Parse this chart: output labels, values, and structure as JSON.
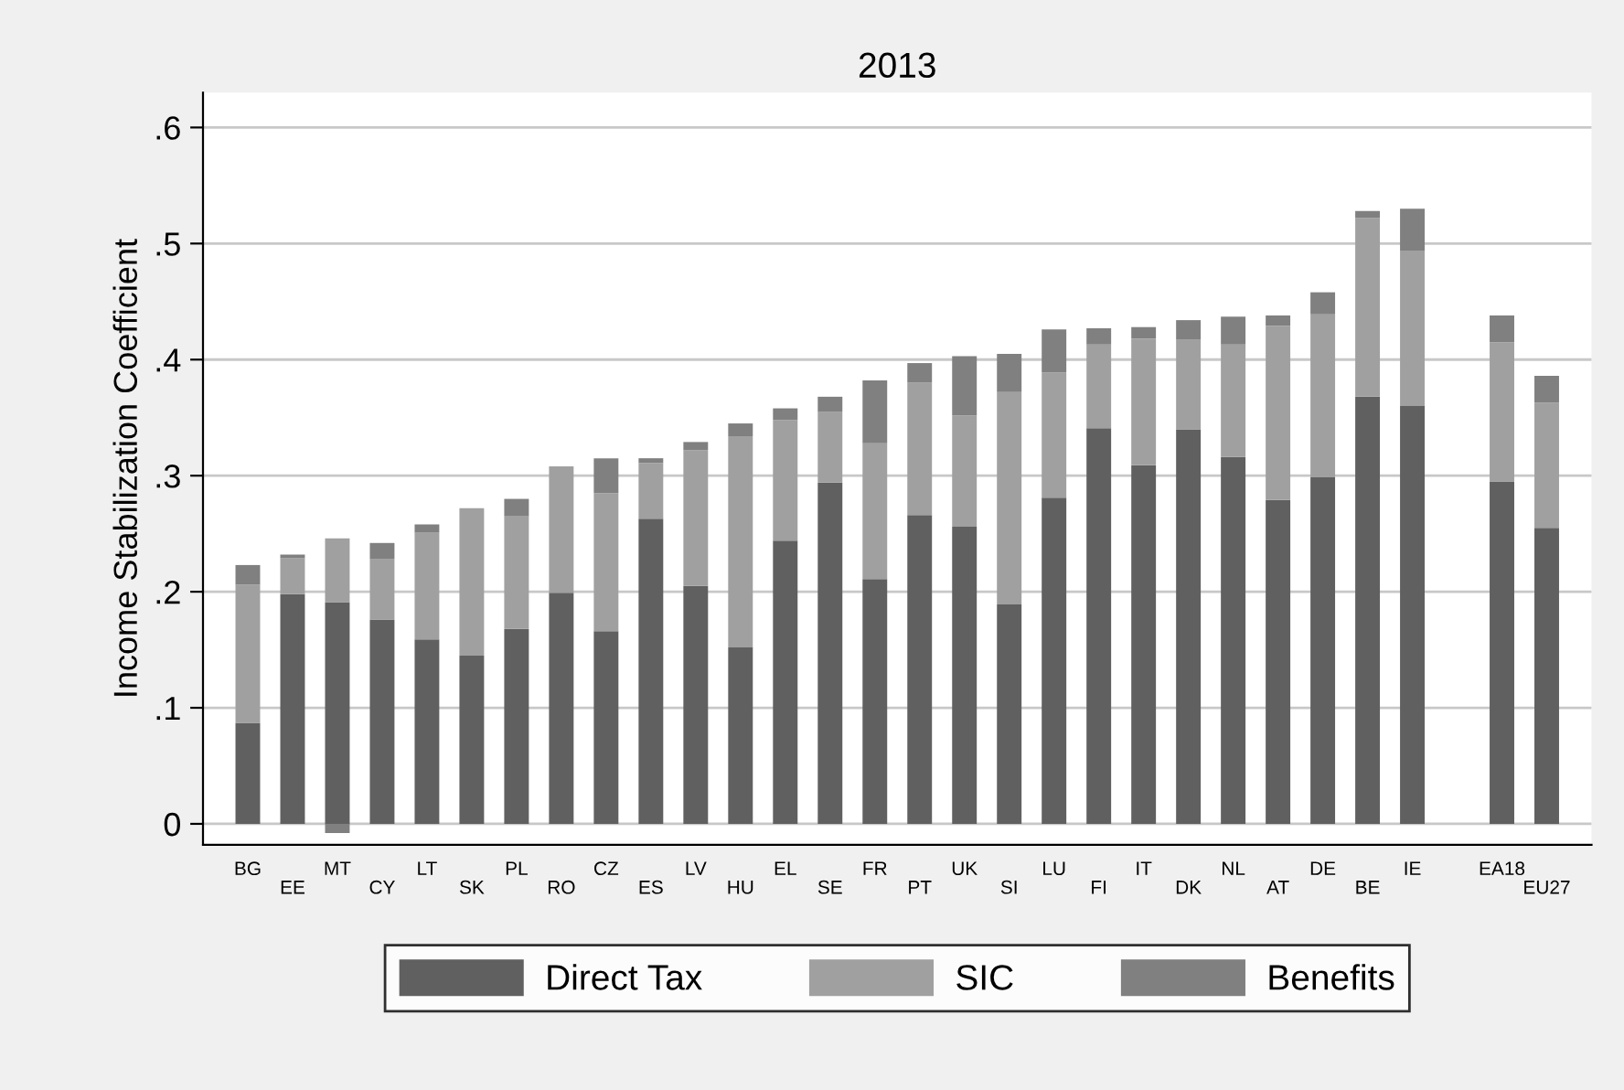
{
  "chart_data": {
    "type": "bar",
    "title": "2013",
    "ylabel": "Income Stabilization Coefficient",
    "stacked": true,
    "categories": [
      "BG",
      "EE",
      "MT",
      "CY",
      "LT",
      "SK",
      "PL",
      "RO",
      "CZ",
      "ES",
      "LV",
      "HU",
      "EL",
      "SE",
      "FR",
      "PT",
      "UK",
      "SI",
      "LU",
      "FI",
      "IT",
      "DK",
      "NL",
      "AT",
      "DE",
      "BE",
      "IE",
      null,
      "EA18",
      "EU27"
    ],
    "series": [
      {
        "name": "Direct Tax",
        "color": "#606060",
        "values": [
          0.087,
          0.198,
          0.191,
          0.176,
          0.159,
          0.145,
          0.168,
          0.199,
          0.166,
          0.263,
          0.205,
          0.152,
          0.244,
          0.294,
          0.211,
          0.266,
          0.256,
          0.189,
          0.281,
          0.341,
          0.309,
          0.34,
          0.316,
          0.279,
          0.299,
          0.368,
          0.36,
          null,
          0.295,
          0.255
        ]
      },
      {
        "name": "SIC",
        "color": "#a0a0a0",
        "values": [
          0.119,
          0.031,
          0.055,
          0.052,
          0.092,
          0.127,
          0.097,
          0.109,
          0.119,
          0.048,
          0.117,
          0.182,
          0.104,
          0.061,
          0.117,
          0.114,
          0.096,
          0.183,
          0.108,
          0.072,
          0.109,
          0.077,
          0.097,
          0.15,
          0.14,
          0.154,
          0.134,
          null,
          0.12,
          0.108
        ]
      },
      {
        "name": "Benefits",
        "color": "#808080",
        "values": [
          0.017,
          0.003,
          -0.008,
          0.014,
          0.007,
          0,
          0.015,
          0,
          0.03,
          0.004,
          0.007,
          0.011,
          0.01,
          0.013,
          0.054,
          0.017,
          0.051,
          0.033,
          0.037,
          0.014,
          0.01,
          0.017,
          0.024,
          0.009,
          0.019,
          0.006,
          0.036,
          null,
          0.023,
          0.023
        ]
      }
    ],
    "ylim": [
      -0.018,
      0.63
    ],
    "yticks": [
      0,
      {
        "value": 0.1,
        "label": ".1"
      },
      {
        "value": 0.2,
        "label": ".2"
      },
      {
        "value": 0.3,
        "label": ".3"
      },
      {
        "value": 0.4,
        "label": ".4"
      },
      {
        "value": 0.5,
        "label": ".5"
      },
      {
        "value": 0.6,
        "label": ".6"
      }
    ],
    "grid": "y",
    "legend": "bottom"
  }
}
